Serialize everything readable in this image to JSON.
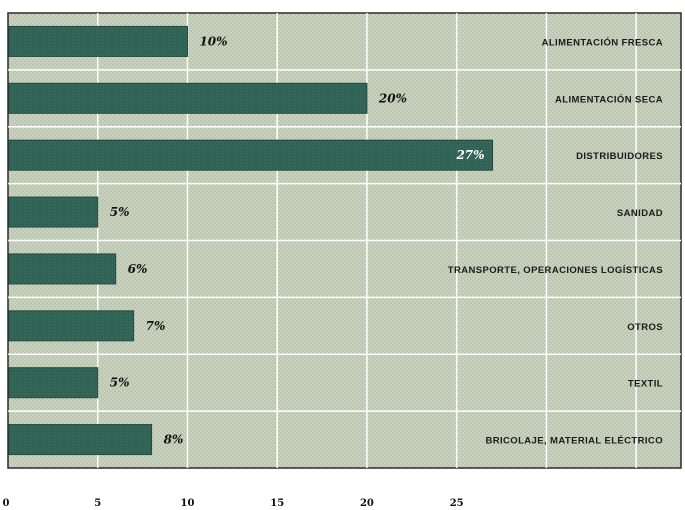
{
  "chart_data": {
    "type": "bar",
    "orientation": "horizontal",
    "categories": [
      "ALIMENTACIÓN FRESCA",
      "ALIMENTACIÓN SECA",
      "DISTRIBUIDORES",
      "SANIDAD",
      "TRANSPORTE, OPERACIONES LOGÍSTICAS",
      "OTROS",
      "TEXTIL",
      "BRICOLAJE, MATERIAL ELÉCTRICO"
    ],
    "values": [
      10,
      20,
      27,
      5,
      6,
      7,
      5,
      8
    ],
    "value_labels": [
      "10%",
      "20%",
      "27%",
      "5%",
      "6%",
      "7%",
      "5%",
      "8%"
    ],
    "x_ticks": [
      "0",
      "5",
      "10",
      "15",
      "20",
      "25"
    ],
    "xlim": [
      0,
      37.5
    ],
    "grid": true,
    "colors": {
      "bar": "#2e6153",
      "plot_background": "#c6cfbb",
      "grid": "#ffffff",
      "label_on_bar": "#ffffff",
      "label_outside": "#111111"
    }
  }
}
